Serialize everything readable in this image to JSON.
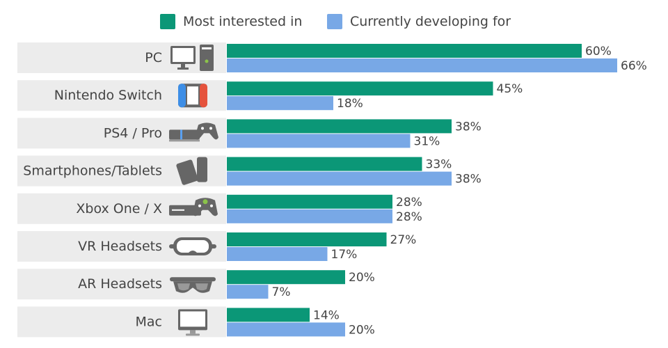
{
  "colors": {
    "interested": "#0b9777",
    "developing": "#78a8e6",
    "row_bg": "#ececec",
    "icon": "#666666"
  },
  "legend": [
    {
      "label": "Most interested in",
      "color": "#0b9777"
    },
    {
      "label": "Currently developing for",
      "color": "#78a8e6"
    }
  ],
  "chart_data": {
    "type": "bar",
    "orientation": "horizontal",
    "categories": [
      "PC",
      "Nintendo Switch",
      "PS4 / Pro",
      "Smartphones/Tablets",
      "Xbox One / X",
      "VR Headsets",
      "AR Headsets",
      "Mac"
    ],
    "icons": [
      "pc-icon",
      "nintendo-switch-icon",
      "ps4-icon",
      "smartphone-tablet-icon",
      "xbox-icon",
      "vr-headset-icon",
      "ar-headset-icon",
      "mac-icon"
    ],
    "series": [
      {
        "name": "Most interested in",
        "values": [
          60,
          45,
          38,
          33,
          28,
          27,
          20,
          14
        ]
      },
      {
        "name": "Currently developing for",
        "values": [
          66,
          18,
          31,
          38,
          28,
          17,
          7,
          20
        ]
      }
    ],
    "value_suffix": "%",
    "xlim": [
      0,
      66
    ],
    "grid": false,
    "legend_position": "top-center"
  }
}
